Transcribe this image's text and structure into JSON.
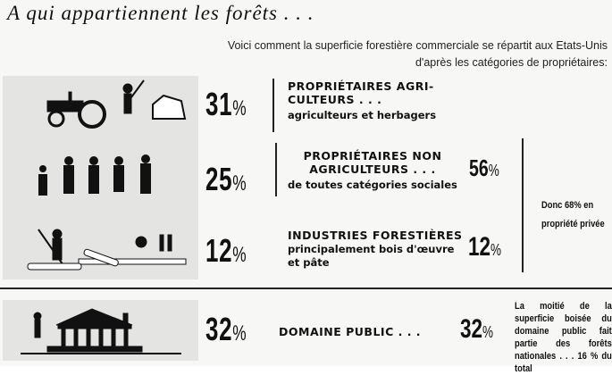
{
  "title": "A qui appartiennent les forêts . . .",
  "intro": "Voici comment la superficie forestière commerciale se répartit aux Etats-Unis d'après les catégories de propriétaires:",
  "rows": [
    {
      "percent": "31",
      "unit": "%",
      "heading": "PROPRIÉTAIRES AGRI-CULTEURS . . .",
      "detail": "agriculteurs et herbagers",
      "illustration": "tractor-farmer-icon"
    },
    {
      "percent": "25",
      "unit": "%",
      "heading": "PROPRIÉTAIRES NON AGRICULTEURS . . .",
      "detail": "de toutes catégories sociales",
      "illustration": "people-icon"
    },
    {
      "percent": "12",
      "unit": "%",
      "heading": "INDUSTRIES FORESTIÈRES",
      "detail": "principalement bois d'œuvre et pâte",
      "illustration": "logging-icon"
    }
  ],
  "subtotals": {
    "first": "56",
    "second": "12",
    "unit": "%"
  },
  "private_note": "Donc 68% en propriété privée",
  "public": {
    "percent": "32",
    "unit": "%",
    "heading": "DOMAINE PUBLIC . . .",
    "subtotal": "32",
    "note": "La moitié de la superficie boisée du domaine public fait partie des forêts nationales . . . 16 % du total",
    "illustration": "public-building-icon"
  }
}
